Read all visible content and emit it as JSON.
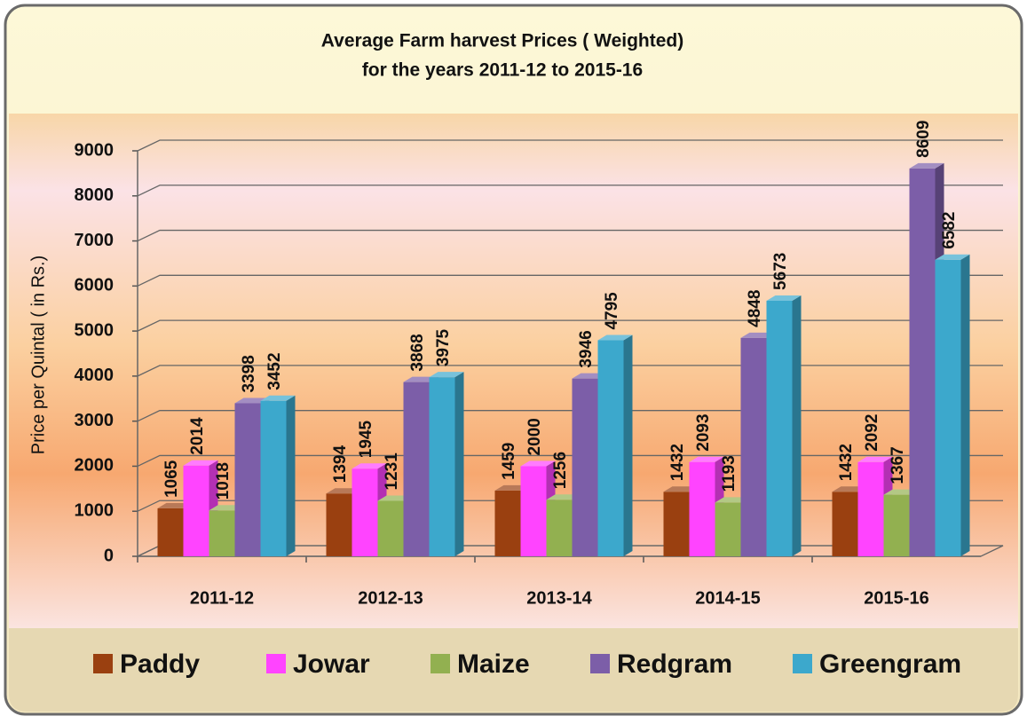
{
  "chart_data": {
    "type": "bar3d",
    "title": "Average Farm harvest Prices ( Weighted)",
    "subtitle": "for the years 2011-12 to 2015-16",
    "y_label": "Price per Quintal ( in Rs.)",
    "categories": [
      "2011-12",
      "2012-13",
      "2013-14",
      "2014-15",
      "2015-16"
    ],
    "series": [
      {
        "name": "Paddy",
        "color": "#9a4010",
        "values": [
          1065,
          1394,
          1459,
          1432,
          1432
        ]
      },
      {
        "name": "Jowar",
        "color": "#ff44ff",
        "values": [
          2014,
          1945,
          2000,
          2093,
          2092
        ]
      },
      {
        "name": "Maize",
        "color": "#92b050",
        "values": [
          1018,
          1231,
          1256,
          1193,
          1367
        ]
      },
      {
        "name": "Redgram",
        "color": "#7c5ea8",
        "values": [
          3398,
          3868,
          3946,
          4848,
          8609
        ]
      },
      {
        "name": "Greengram",
        "color": "#3ca8cc",
        "values": [
          3452,
          3975,
          4795,
          5673,
          6582
        ]
      }
    ],
    "ylim": [
      0,
      9000
    ],
    "yticks": [
      0,
      1000,
      2000,
      3000,
      4000,
      5000,
      6000,
      7000,
      8000,
      9000
    ],
    "grid": true,
    "legend": "bottom"
  }
}
